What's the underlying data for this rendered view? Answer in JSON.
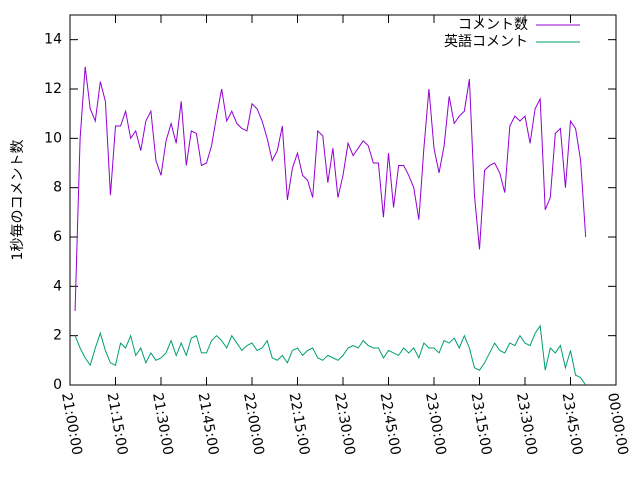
{
  "chart_data": {
    "type": "line",
    "ylabel": "1秒毎のコメント数",
    "x": [
      "21:01:40",
      "21:03:20",
      "21:05:00",
      "21:06:40",
      "21:08:20",
      "21:10:00",
      "21:11:40",
      "21:13:20",
      "21:15:00",
      "21:16:40",
      "21:18:20",
      "21:20:00",
      "21:21:40",
      "21:23:20",
      "21:25:00",
      "21:26:40",
      "21:28:20",
      "21:30:00",
      "21:31:40",
      "21:33:20",
      "21:35:00",
      "21:36:40",
      "21:38:20",
      "21:40:00",
      "21:41:40",
      "21:43:20",
      "21:45:00",
      "21:46:40",
      "21:48:20",
      "21:50:00",
      "21:51:40",
      "21:53:20",
      "21:55:00",
      "21:56:40",
      "21:58:20",
      "22:00:00",
      "22:01:40",
      "22:03:20",
      "22:05:00",
      "22:06:40",
      "22:08:20",
      "22:10:00",
      "22:11:40",
      "22:13:20",
      "22:15:00",
      "22:16:40",
      "22:18:20",
      "22:20:00",
      "22:21:40",
      "22:23:20",
      "22:25:00",
      "22:26:40",
      "22:28:20",
      "22:30:00",
      "22:31:40",
      "22:33:20",
      "22:35:00",
      "22:36:40",
      "22:38:20",
      "22:40:00",
      "22:41:40",
      "22:43:20",
      "22:45:00",
      "22:46:40",
      "22:48:20",
      "22:50:00",
      "22:51:40",
      "22:53:20",
      "22:55:00",
      "22:56:40",
      "22:58:20",
      "23:00:00",
      "23:01:40",
      "23:03:20",
      "23:05:00",
      "23:06:40",
      "23:08:20",
      "23:10:00",
      "23:11:40",
      "23:13:20",
      "23:15:00",
      "23:16:40",
      "23:18:20",
      "23:20:00",
      "23:21:40",
      "23:23:20",
      "23:25:00",
      "23:26:40",
      "23:28:20",
      "23:30:00",
      "23:31:40",
      "23:33:20",
      "23:35:00",
      "23:36:40",
      "23:38:20",
      "23:40:00",
      "23:41:40",
      "23:43:20",
      "23:45:00",
      "23:46:40",
      "23:48:20",
      "23:50:00"
    ],
    "series": [
      {
        "name": "コメント数",
        "color": "#9400d3",
        "values": [
          3.0,
          10.0,
          12.9,
          11.2,
          10.7,
          12.3,
          11.5,
          7.7,
          10.5,
          10.5,
          11.1,
          10.0,
          10.3,
          9.5,
          10.7,
          11.1,
          9.1,
          8.5,
          9.9,
          10.6,
          9.8,
          11.5,
          8.9,
          10.3,
          10.2,
          8.9,
          9.0,
          9.7,
          10.9,
          12.0,
          10.7,
          11.1,
          10.6,
          10.4,
          10.3,
          11.4,
          11.2,
          10.7,
          10.0,
          9.1,
          9.5,
          10.5,
          7.5,
          8.8,
          9.4,
          8.5,
          8.3,
          7.6,
          10.3,
          10.1,
          8.2,
          9.6,
          7.6,
          8.5,
          9.8,
          9.3,
          9.6,
          9.9,
          9.7,
          9.0,
          9.0,
          6.8,
          9.4,
          7.2,
          8.9,
          8.9,
          8.5,
          8.0,
          6.7,
          9.6,
          12.0,
          9.6,
          8.6,
          9.7,
          11.7,
          10.6,
          10.9,
          11.1,
          12.4,
          7.7,
          5.5,
          8.7,
          8.9,
          9.0,
          8.6,
          7.8,
          10.5,
          10.9,
          10.7,
          10.9,
          9.8,
          11.2,
          11.6,
          7.1,
          7.6,
          10.2,
          10.4,
          8.0,
          10.7,
          10.4,
          9.1,
          6.0
        ]
      },
      {
        "name": "英語コメント",
        "color": "#009e73",
        "values": [
          2.0,
          1.5,
          1.1,
          0.8,
          1.5,
          2.1,
          1.4,
          0.9,
          0.8,
          1.7,
          1.5,
          2.0,
          1.2,
          1.5,
          0.9,
          1.3,
          1.0,
          1.1,
          1.3,
          1.8,
          1.2,
          1.7,
          1.2,
          1.9,
          2.0,
          1.3,
          1.3,
          1.8,
          2.0,
          1.8,
          1.5,
          2.0,
          1.7,
          1.4,
          1.6,
          1.7,
          1.4,
          1.5,
          1.8,
          1.1,
          1.0,
          1.2,
          0.9,
          1.4,
          1.5,
          1.2,
          1.4,
          1.5,
          1.1,
          1.0,
          1.2,
          1.1,
          1.0,
          1.2,
          1.5,
          1.6,
          1.5,
          1.8,
          1.6,
          1.5,
          1.5,
          1.1,
          1.4,
          1.3,
          1.2,
          1.5,
          1.3,
          1.5,
          1.1,
          1.7,
          1.5,
          1.5,
          1.3,
          1.8,
          1.7,
          1.9,
          1.5,
          2.0,
          1.5,
          0.7,
          0.6,
          0.9,
          1.3,
          1.7,
          1.4,
          1.3,
          1.7,
          1.6,
          2.0,
          1.7,
          1.6,
          2.1,
          2.4,
          0.6,
          1.5,
          1.3,
          1.6,
          0.7,
          1.4,
          0.4,
          0.3,
          0.0
        ]
      }
    ],
    "xlim": [
      "21:00:00",
      "00:00:00"
    ],
    "xticks": [
      "21:00:00",
      "21:15:00",
      "21:30:00",
      "21:45:00",
      "22:00:00",
      "22:15:00",
      "22:30:00",
      "22:45:00",
      "23:00:00",
      "23:15:00",
      "23:30:00",
      "23:45:00",
      "00:00:00"
    ],
    "ylim": [
      0,
      15
    ],
    "yticks": [
      0,
      2,
      4,
      6,
      8,
      10,
      12,
      14
    ],
    "grid": false,
    "legend": "top-right"
  }
}
